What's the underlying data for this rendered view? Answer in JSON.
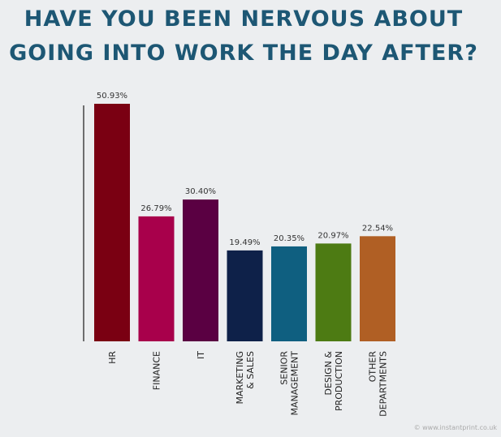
{
  "chart_data": {
    "type": "bar",
    "title": [
      "HAVE YOU BEEN NERVOUS ABOUT",
      "GOING INTO WORK THE DAY AFTER?"
    ],
    "categories": [
      "HR",
      "FINANCE",
      "IT",
      "MARKETING\n& SALES",
      "SENIOR\nMANAGEMENT",
      "DESIGN &\nPRODUCTION",
      "OTHER\nDEPARTMENTS"
    ],
    "values": [
      50.93,
      26.79,
      30.4,
      19.49,
      20.35,
      20.97,
      22.54
    ],
    "value_labels": [
      "50.93%",
      "26.79%",
      "30.40%",
      "19.49%",
      "20.35%",
      "20.97%",
      "22.54%"
    ],
    "colors": [
      "#7a0012",
      "#a8004b",
      "#5a0042",
      "#0e2149",
      "#0f5f80",
      "#4d7b13",
      "#b05f24"
    ],
    "watermark": "© www.instantprint.co.uk"
  }
}
